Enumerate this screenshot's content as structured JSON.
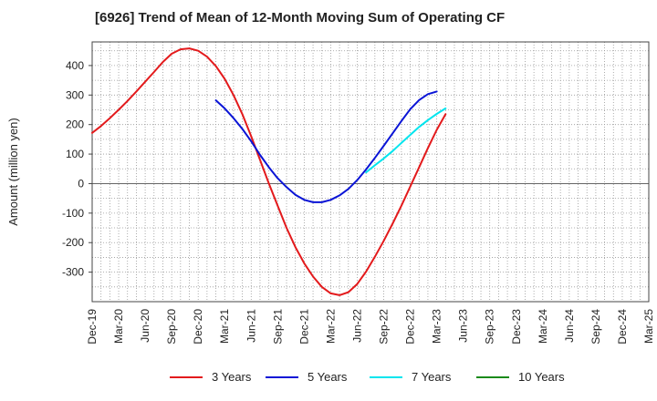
{
  "title": "[6926]  Trend of Mean of 12-Month Moving Sum of Operating CF",
  "chart_data": {
    "type": "line",
    "title": "[6926]  Trend of Mean of 12-Month Moving Sum of Operating CF",
    "xlabel": "",
    "ylabel": "Amount (million yen)",
    "ylim": [
      -400,
      480
    ],
    "yticks": [
      400,
      300,
      200,
      100,
      0,
      -100,
      -200,
      -300
    ],
    "xticks": [
      "Dec-19",
      "Mar-20",
      "Jun-20",
      "Sep-20",
      "Dec-20",
      "Mar-21",
      "Jun-21",
      "Sep-21",
      "Dec-21",
      "Mar-22",
      "Jun-22",
      "Sep-22",
      "Dec-22",
      "Mar-23",
      "Jun-23",
      "Sep-23",
      "Dec-23",
      "Mar-24",
      "Jun-24",
      "Sep-24",
      "Dec-24",
      "Mar-25"
    ],
    "grid": true,
    "series": [
      {
        "name": "3 Years",
        "color": "#e31a1c",
        "points": [
          [
            0,
            172
          ],
          [
            1,
            195
          ],
          [
            2,
            222
          ],
          [
            3,
            250
          ],
          [
            4,
            280
          ],
          [
            5,
            312
          ],
          [
            6,
            345
          ],
          [
            7,
            378
          ],
          [
            8,
            412
          ],
          [
            9,
            440
          ],
          [
            10,
            455
          ],
          [
            11,
            458
          ],
          [
            12,
            450
          ],
          [
            13,
            430
          ],
          [
            14,
            398
          ],
          [
            15,
            355
          ],
          [
            16,
            300
          ],
          [
            17,
            235
          ],
          [
            18,
            160
          ],
          [
            19,
            80
          ],
          [
            20,
            0
          ],
          [
            21,
            -75
          ],
          [
            22,
            -150
          ],
          [
            23,
            -215
          ],
          [
            24,
            -270
          ],
          [
            25,
            -315
          ],
          [
            26,
            -350
          ],
          [
            27,
            -372
          ],
          [
            28,
            -378
          ],
          [
            29,
            -368
          ],
          [
            30,
            -340
          ],
          [
            31,
            -298
          ],
          [
            32,
            -248
          ],
          [
            33,
            -194
          ],
          [
            34,
            -136
          ],
          [
            35,
            -75
          ],
          [
            36,
            -10
          ],
          [
            37,
            55
          ],
          [
            38,
            120
          ],
          [
            39,
            182
          ],
          [
            40,
            235
          ]
        ]
      },
      {
        "name": "5 Years",
        "color": "#0a14d6",
        "points": [
          [
            14,
            282
          ],
          [
            15,
            255
          ],
          [
            16,
            222
          ],
          [
            17,
            185
          ],
          [
            18,
            143
          ],
          [
            19,
            97
          ],
          [
            20,
            55
          ],
          [
            21,
            18
          ],
          [
            22,
            -12
          ],
          [
            23,
            -38
          ],
          [
            24,
            -55
          ],
          [
            25,
            -63
          ],
          [
            26,
            -63
          ],
          [
            27,
            -55
          ],
          [
            28,
            -40
          ],
          [
            29,
            -18
          ],
          [
            30,
            12
          ],
          [
            31,
            48
          ],
          [
            32,
            87
          ],
          [
            33,
            128
          ],
          [
            34,
            170
          ],
          [
            35,
            212
          ],
          [
            36,
            252
          ],
          [
            37,
            283
          ],
          [
            38,
            303
          ],
          [
            39,
            312
          ]
        ]
      },
      {
        "name": "7 Years",
        "color": "#00e5ee",
        "points": [
          [
            31,
            38
          ],
          [
            32,
            62
          ],
          [
            33,
            85
          ],
          [
            34,
            110
          ],
          [
            35,
            138
          ],
          [
            36,
            165
          ],
          [
            37,
            192
          ],
          [
            38,
            215
          ],
          [
            39,
            236
          ],
          [
            40,
            255
          ]
        ]
      },
      {
        "name": "10 Years",
        "color": "#1a8a1a",
        "points": []
      }
    ]
  }
}
